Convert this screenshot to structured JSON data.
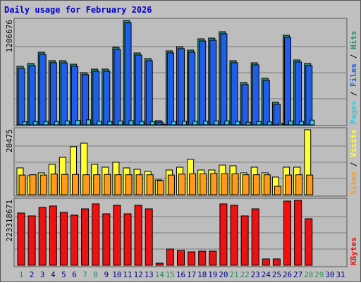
{
  "chart_data": [
    {
      "type": "bar",
      "title": "Daily usage for February 2026",
      "ylim": [
        0,
        1206676
      ],
      "yticks": [
        1206676
      ],
      "series": [
        {
          "name": "Pages",
          "color": "#33c6e6",
          "values": [
            36000,
            38000,
            40000,
            38000,
            45000,
            52000,
            58000,
            42000,
            40000,
            44000,
            48000,
            40000,
            38000,
            6000,
            40000,
            42000,
            41000,
            44000,
            45000,
            46000,
            40000,
            30000,
            38000,
            34000,
            20000,
            44000,
            40000,
            55000,
            null,
            null,
            null
          ]
        },
        {
          "name": "Files",
          "color": "#1f5ee8",
          "values": [
            652000,
            685000,
            815000,
            718000,
            718000,
            677000,
            580000,
            620000,
            620000,
            872000,
            1182000,
            807000,
            742000,
            32000,
            832000,
            881000,
            840000,
            970000,
            978000,
            1052000,
            718000,
            465000,
            693000,
            514000,
            237000,
            1011000,
            726000,
            685000,
            null,
            null,
            null
          ]
        },
        {
          "name": "Hits",
          "color": "#2a8c78",
          "values": [
            676700,
            709300,
            839800,
            741900,
            741900,
            701200,
            603300,
            644100,
            644100,
            896800,
            1206676,
            831600,
            766400,
            48900,
            856100,
            905000,
            864200,
            994700,
            1002800,
            1076200,
            741900,
            489200,
            717500,
            538100,
            260900,
            1035400,
            750100,
            709300,
            null,
            null,
            null
          ]
        }
      ]
    },
    {
      "type": "bar",
      "ylim": [
        0,
        20475
      ],
      "yticks": [
        20475
      ],
      "series": [
        {
          "name": "Sites",
          "color": "#ff9a1a",
          "values": [
            6200,
            6300,
            6200,
            6500,
            6400,
            6400,
            6300,
            6300,
            6400,
            6300,
            6300,
            6300,
            6300,
            4450,
            6200,
            6500,
            6600,
            6600,
            6700,
            6600,
            6600,
            6300,
            6300,
            6300,
            2670,
            6200,
            6300,
            6200,
            null,
            null,
            null
          ]
        },
        {
          "name": "Visits",
          "color": "#ffff33",
          "values": [
            8460,
            6010,
            6900,
            9570,
            11800,
            15140,
            16250,
            9570,
            8680,
            10240,
            8460,
            8010,
            7350,
            4670,
            7790,
            8680,
            11130,
            7790,
            7790,
            9350,
            9130,
            6900,
            8680,
            6900,
            5570,
            8680,
            8680,
            20475,
            null,
            null,
            null
          ]
        }
      ]
    },
    {
      "type": "bar",
      "ylim": [
        0,
        223318671
      ],
      "yticks": [
        223318671
      ],
      "categories": [
        "1",
        "2",
        "3",
        "4",
        "5",
        "6",
        "7",
        "8",
        "9",
        "10",
        "11",
        "12",
        "13",
        "14",
        "15",
        "16",
        "17",
        "18",
        "19",
        "20",
        "21",
        "22",
        "23",
        "24",
        "25",
        "26",
        "27",
        "28",
        "29",
        "30",
        "31"
      ],
      "category_colors": [
        "#2a8c5a",
        "#000088",
        "#000088",
        "#000088",
        "#000088",
        "#000088",
        "#2a8c5a",
        "#2a8c5a",
        "#000088",
        "#000088",
        "#000088",
        "#000088",
        "#000088",
        "#2a8c5a",
        "#2a8c5a",
        "#000088",
        "#000088",
        "#000088",
        "#000088",
        "#000088",
        "#2a8c5a",
        "#2a8c5a",
        "#000088",
        "#000088",
        "#000088",
        "#000088",
        "#000088",
        "#2a8c5a",
        "#2a8c5a",
        "#000088",
        "#000088"
      ],
      "series": [
        {
          "name": "KBytes",
          "color": "#ee1111",
          "values": [
            179626000,
            169916000,
            199045000,
            203900000,
            182053000,
            172344000,
            194190000,
            211182000,
            177199000,
            206327000,
            177199000,
            206327000,
            194190000,
            7282000,
            55830000,
            50975000,
            46120000,
            48548000,
            48548000,
            211182000,
            206327000,
            169916000,
            194190000,
            21846000,
            21846000,
            220891000,
            223318671,
            160207000,
            null,
            null,
            null
          ]
        }
      ]
    }
  ]
}
